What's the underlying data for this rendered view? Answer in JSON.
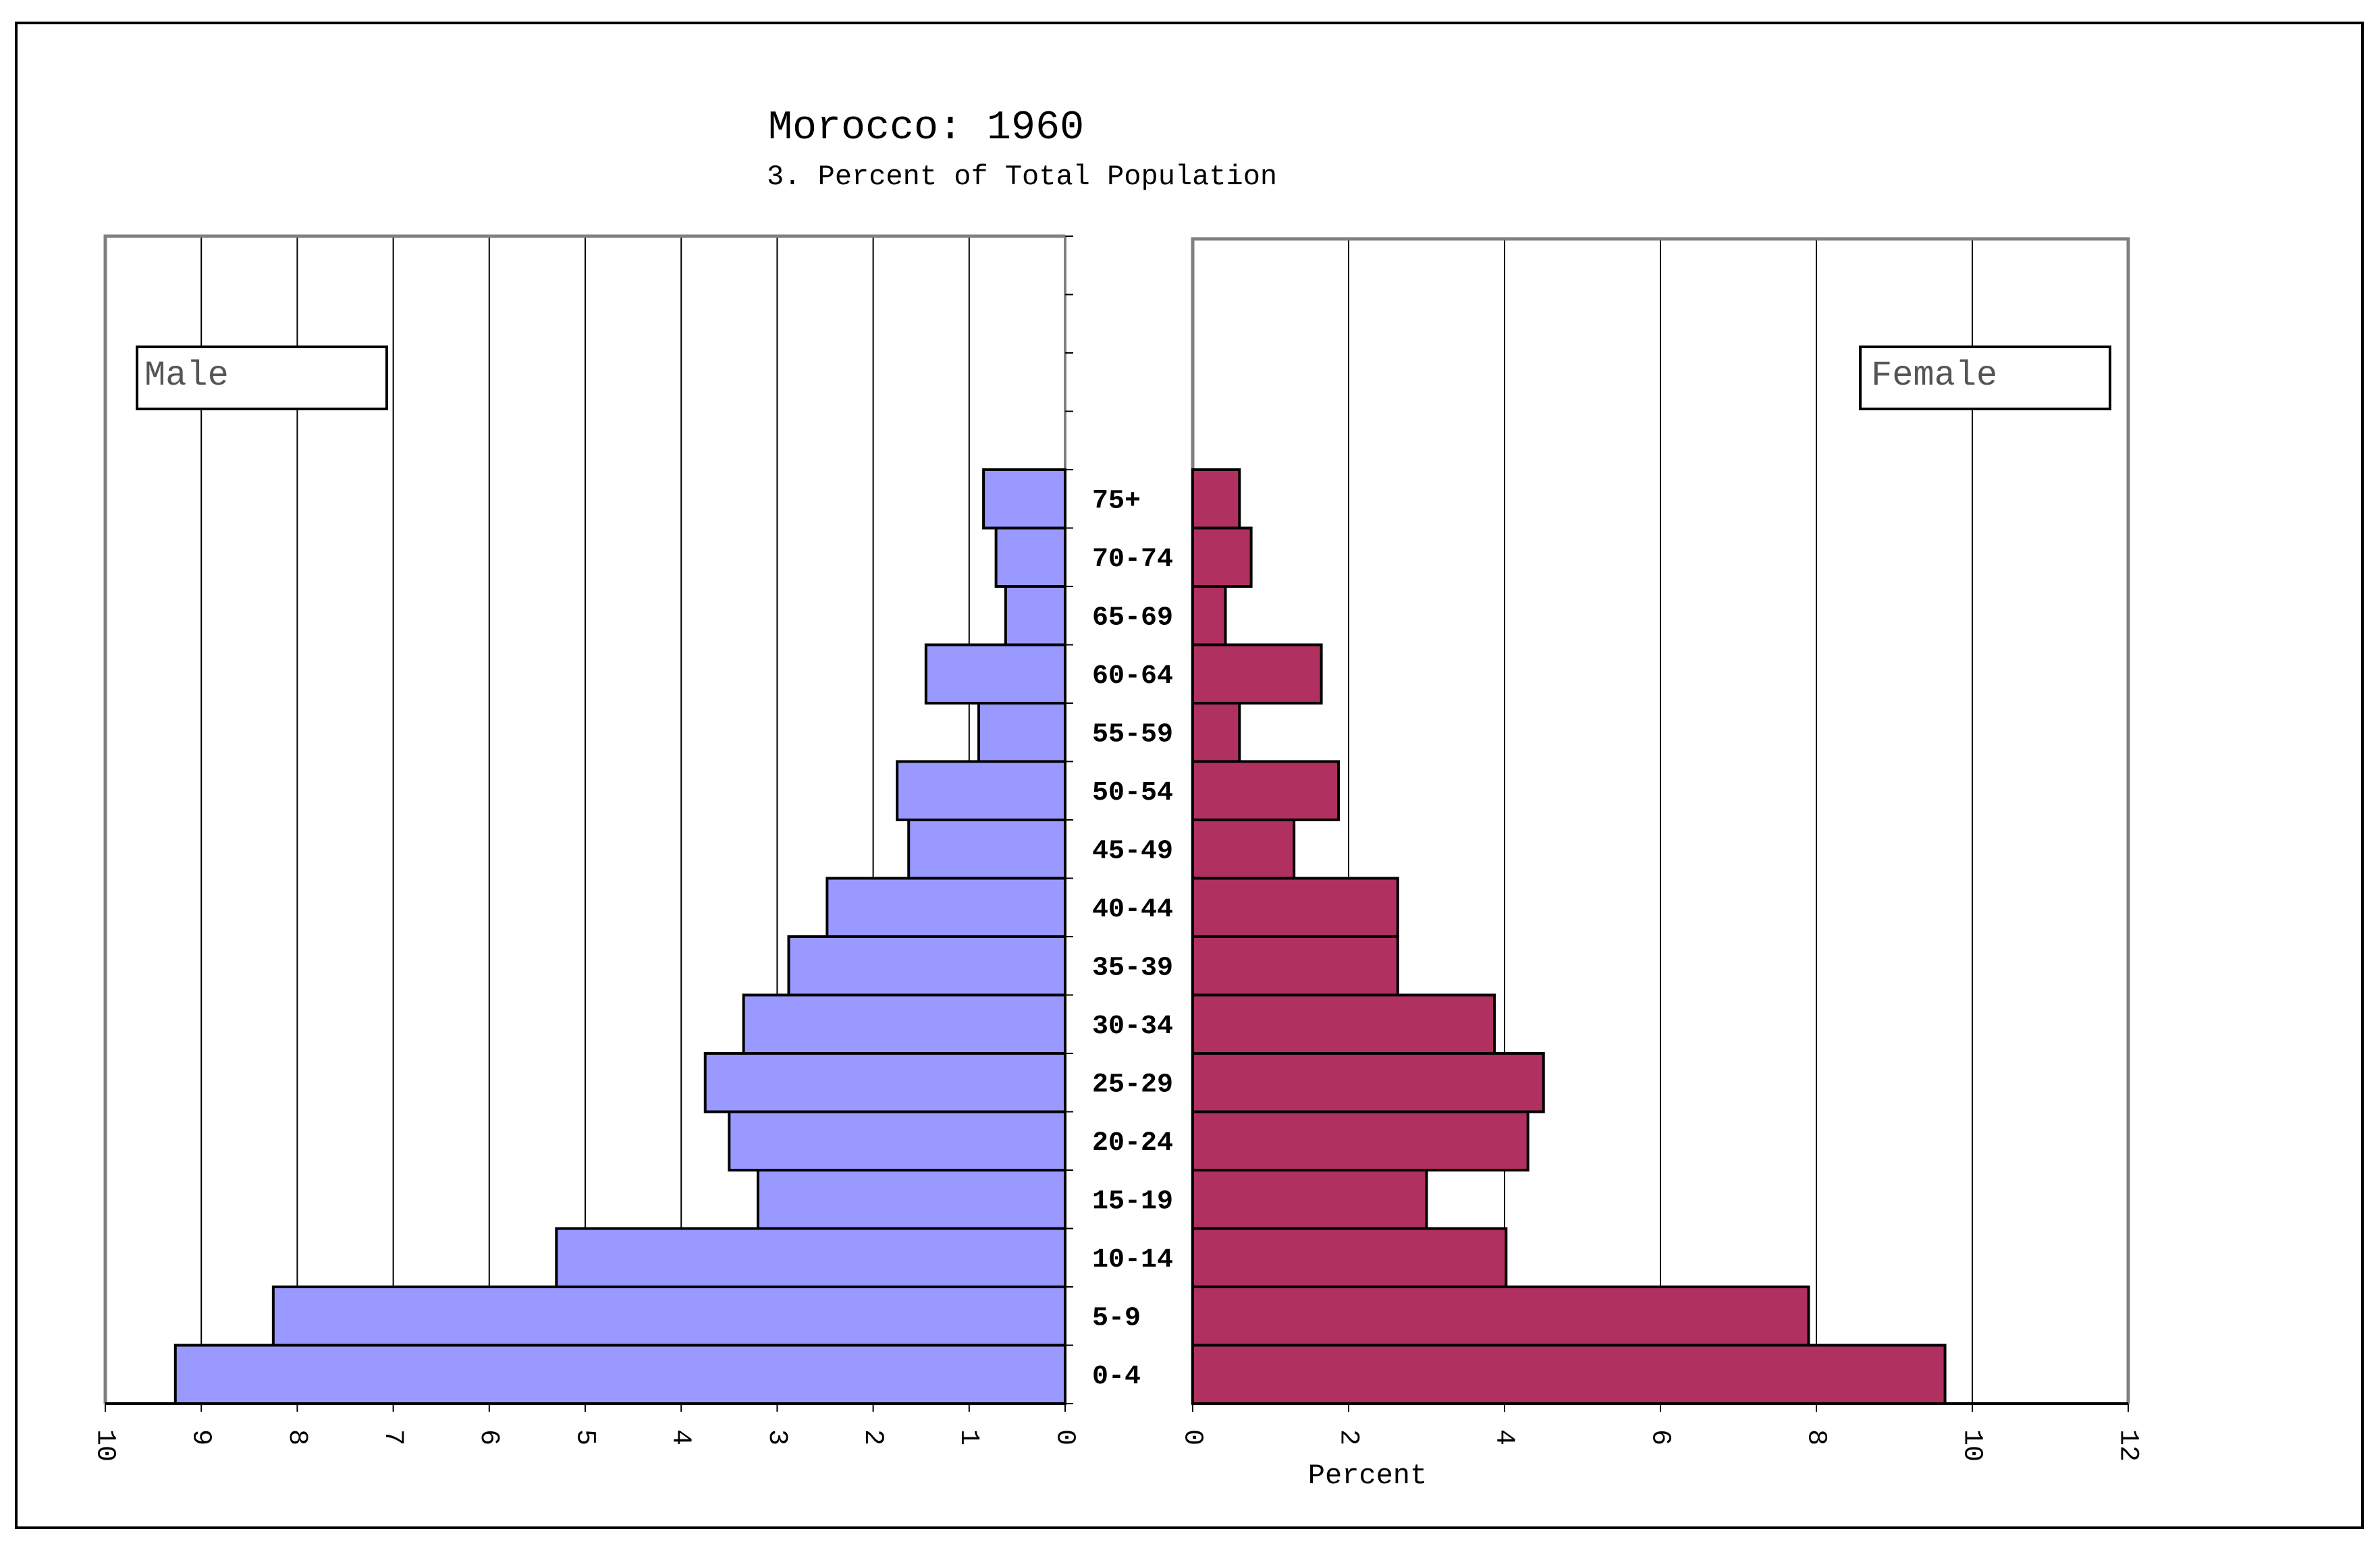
{
  "chart_data": {
    "type": "bar",
    "orientation": "horizontal",
    "title": "Morocco: 1960",
    "subtitle": "3. Percent of Total Population",
    "xlabel": "Percent",
    "categories": [
      "0-4",
      "5-9",
      "10-14",
      "15-19",
      "20-24",
      "25-29",
      "30-34",
      "35-39",
      "40-44",
      "45-49",
      "50-54",
      "55-59",
      "60-64",
      "65-69",
      "70-74",
      "75+"
    ],
    "series": [
      {
        "name": "Male",
        "color": "#9999ff",
        "xlim": [
          10,
          0
        ],
        "ticks": [
          "10",
          "9",
          "8",
          "7",
          "6",
          "5",
          "4",
          "3",
          "2",
          "1",
          "0"
        ],
        "values": [
          9.27,
          8.25,
          5.3,
          3.2,
          3.5,
          3.75,
          3.35,
          2.88,
          2.48,
          1.63,
          1.75,
          0.9,
          1.45,
          0.62,
          0.72,
          0.85
        ]
      },
      {
        "name": "Female",
        "color": "#b03060",
        "xlim": [
          0,
          12
        ],
        "ticks": [
          "0",
          "2",
          "4",
          "6",
          "8",
          "10",
          "12"
        ],
        "values": [
          9.65,
          7.9,
          4.02,
          3.0,
          4.3,
          4.5,
          3.87,
          2.63,
          2.63,
          1.3,
          1.87,
          0.6,
          1.65,
          0.42,
          0.75,
          0.6
        ]
      }
    ]
  }
}
